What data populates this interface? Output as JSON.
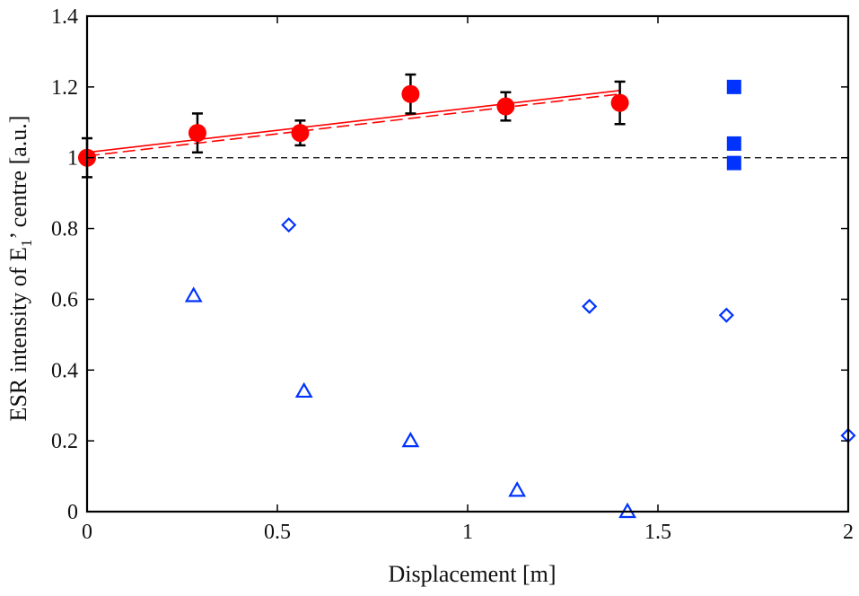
{
  "chart_data": {
    "type": "scatter",
    "xlabel": "Displacement [m]",
    "ylabel": {
      "pre": "ESR intensity of E",
      "sub": "1",
      "post": "’ centre [a.u.]"
    },
    "xlim": [
      0,
      2
    ],
    "ylim": [
      0,
      1.4
    ],
    "x_ticks": [
      {
        "value": 0,
        "label": "0"
      },
      {
        "value": 0.5,
        "label": "0.5"
      },
      {
        "value": 1,
        "label": "1"
      },
      {
        "value": 1.5,
        "label": "1.5"
      },
      {
        "value": 2,
        "label": "2"
      }
    ],
    "y_ticks": [
      {
        "value": 0,
        "label": "0"
      },
      {
        "value": 0.2,
        "label": "0.2"
      },
      {
        "value": 0.4,
        "label": "0.4"
      },
      {
        "value": 0.6,
        "label": "0.6"
      },
      {
        "value": 0.8,
        "label": "0.8"
      },
      {
        "value": 1,
        "label": "1"
      },
      {
        "value": 1.2,
        "label": "1.2"
      },
      {
        "value": 1.4,
        "label": "1.4"
      }
    ],
    "grid": false,
    "legend": "none",
    "reference_line": {
      "y": 1.0,
      "style": "dashed",
      "color": "#000000"
    },
    "series": [
      {
        "marker": "filled-circle",
        "color": "#ff0000",
        "error_color": "#000000",
        "points": [
          {
            "x": 0.0,
            "y": 1.0,
            "err": 0.055
          },
          {
            "x": 0.29,
            "y": 1.07,
            "err": 0.055
          },
          {
            "x": 0.56,
            "y": 1.07,
            "err": 0.035
          },
          {
            "x": 0.85,
            "y": 1.18,
            "err": 0.055
          },
          {
            "x": 1.1,
            "y": 1.145,
            "err": 0.04
          },
          {
            "x": 1.4,
            "y": 1.155,
            "err": 0.06
          }
        ]
      },
      {
        "marker": "filled-square",
        "color": "#0033ff",
        "points": [
          {
            "x": 1.7,
            "y": 1.2
          },
          {
            "x": 1.7,
            "y": 1.04
          },
          {
            "x": 1.7,
            "y": 0.985
          }
        ]
      },
      {
        "marker": "open-diamond",
        "color": "#0033ff",
        "points": [
          {
            "x": 0.53,
            "y": 0.81
          },
          {
            "x": 1.32,
            "y": 0.58
          },
          {
            "x": 1.68,
            "y": 0.555
          },
          {
            "x": 2.0,
            "y": 0.215
          }
        ]
      },
      {
        "marker": "open-triangle",
        "color": "#0033ff",
        "points": [
          {
            "x": 0.28,
            "y": 0.61
          },
          {
            "x": 0.57,
            "y": 0.34
          },
          {
            "x": 0.85,
            "y": 0.2
          },
          {
            "x": 1.13,
            "y": 0.06
          },
          {
            "x": 1.42,
            "y": 0.0
          }
        ]
      }
    ],
    "fit_lines": [
      {
        "style": "solid",
        "color": "#ff0000",
        "x": [
          0.0,
          1.4
        ],
        "y": [
          1.015,
          1.19
        ]
      },
      {
        "style": "dashed",
        "color": "#ff0000",
        "x": [
          0.0,
          1.4
        ],
        "y": [
          1.005,
          1.18
        ]
      }
    ]
  }
}
